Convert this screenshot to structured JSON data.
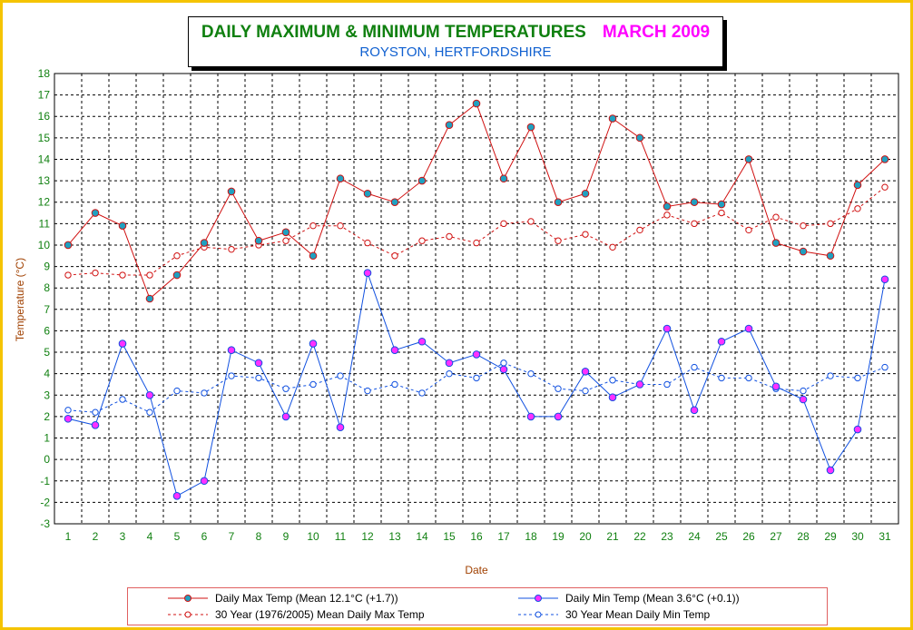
{
  "title": {
    "main": "DAILY MAXIMUM &  MINIMUM  TEMPERATURES",
    "month": "MARCH 2009",
    "location": "ROYSTON, HERTFORDSHIRE"
  },
  "colors": {
    "max": "#d01010",
    "min": "#1050e0",
    "max_marker": "#20a0c0",
    "min_marker": "#ff30ff",
    "grid": "#000000",
    "frame": "#f5c400"
  },
  "chart_data": {
    "type": "line",
    "xlabel": "Date",
    "ylabel": "Temperature (°C)",
    "xlim": [
      1,
      31
    ],
    "ylim": [
      -3,
      18
    ],
    "grid": true,
    "legend_placement": "bottom",
    "x": [
      1,
      2,
      3,
      4,
      5,
      6,
      7,
      8,
      9,
      10,
      11,
      12,
      13,
      14,
      15,
      16,
      17,
      18,
      19,
      20,
      21,
      22,
      23,
      24,
      25,
      26,
      27,
      28,
      29,
      30,
      31
    ],
    "y_ticks": [
      -3,
      -2,
      -1,
      0,
      1,
      2,
      3,
      4,
      5,
      6,
      7,
      8,
      9,
      10,
      11,
      12,
      13,
      14,
      15,
      16,
      17,
      18
    ],
    "series": [
      {
        "name": "Daily Max Temp (Mean 12.1°C (+1.7))",
        "style": "solid",
        "values": [
          10.0,
          11.5,
          10.9,
          7.5,
          8.6,
          10.1,
          12.5,
          10.2,
          10.6,
          9.5,
          13.1,
          12.4,
          12.0,
          13.0,
          15.6,
          16.6,
          13.1,
          15.5,
          12.0,
          12.4,
          15.9,
          15.0,
          11.8,
          12.0,
          11.9,
          14.0,
          10.1,
          9.7,
          9.5,
          12.8,
          14.0
        ]
      },
      {
        "name": "Daily Min Temp (Mean 3.6°C (+0.1))",
        "style": "solid",
        "values": [
          1.9,
          1.6,
          5.4,
          3.0,
          -1.7,
          -1.0,
          5.1,
          4.5,
          2.0,
          5.4,
          1.5,
          8.7,
          5.1,
          5.5,
          4.5,
          4.9,
          4.2,
          2.0,
          2.0,
          4.1,
          2.9,
          3.5,
          6.1,
          2.3,
          5.5,
          6.1,
          3.4,
          2.8,
          -0.5,
          1.4,
          8.4
        ]
      },
      {
        "name": "30 Year (1976/2005) Mean Daily Max Temp",
        "style": "dashed",
        "values": [
          8.6,
          8.7,
          8.6,
          8.6,
          9.5,
          9.9,
          9.8,
          10.0,
          10.2,
          10.9,
          10.9,
          10.1,
          9.5,
          10.2,
          10.4,
          10.1,
          11.0,
          11.1,
          10.2,
          10.5,
          9.9,
          10.7,
          11.4,
          11.0,
          11.5,
          10.7,
          11.3,
          10.9,
          11.0,
          11.7,
          12.7
        ]
      },
      {
        "name": "30 Year Mean Daily Min Temp",
        "style": "dashed",
        "values": [
          2.3,
          2.2,
          2.8,
          2.2,
          3.2,
          3.1,
          3.9,
          3.8,
          3.3,
          3.5,
          3.9,
          3.2,
          3.5,
          3.1,
          4.0,
          3.8,
          4.5,
          4.0,
          3.3,
          3.2,
          3.7,
          3.5,
          3.5,
          4.3,
          3.8,
          3.8,
          3.3,
          3.2,
          3.9,
          3.8,
          4.3
        ]
      }
    ]
  }
}
